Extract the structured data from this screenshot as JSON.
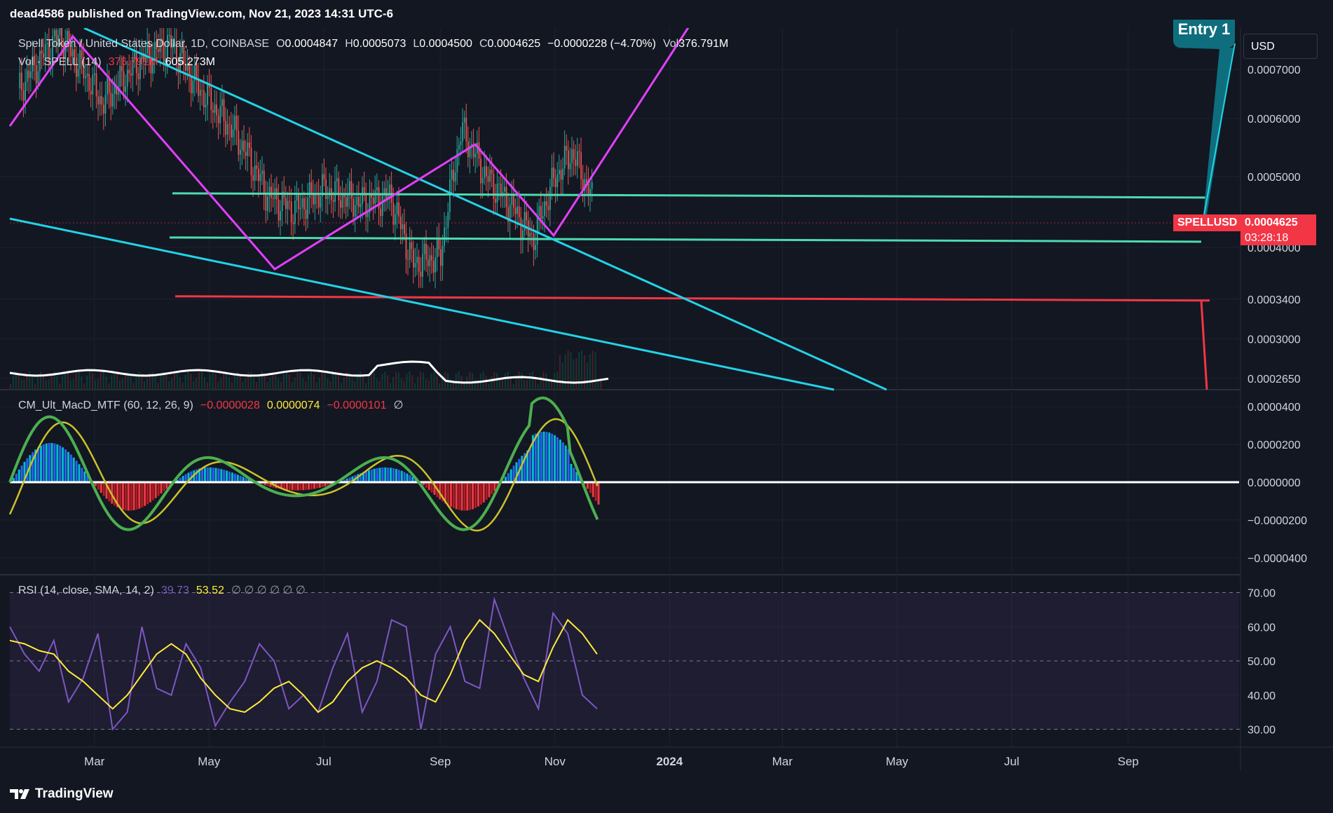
{
  "header": {
    "publish_text": "dead4586 published on TradingView.com, Nov 21, 2023 14:31 UTC-6"
  },
  "main_legend": {
    "symbol": "Spell Token / United States Dollar, 1D, COINBASE",
    "o_label": "O",
    "o_value": "0.0004847",
    "h_label": "H",
    "h_value": "0.0005073",
    "l_label": "L",
    "l_value": "0.0004500",
    "c_label": "C",
    "c_value": "0.0004625",
    "change": "−0.0000228 (−4.70%)",
    "vol_label": "Vol",
    "vol_value": "376.791M"
  },
  "vol_legend": {
    "name": "Vol · SPELL (14)",
    "value1": "376.791M",
    "value2": "605.273M"
  },
  "macd_legend": {
    "name": "CM_Ult_MacD_MTF (60, 12, 26, 9)",
    "v1": "−0.0000028",
    "v2": "0.0000074",
    "v3": "−0.0000101",
    "v4": "∅"
  },
  "rsi_legend": {
    "name": "RSI (14, close, SMA, 14, 2)",
    "v1": "39.73",
    "v2": "53.52",
    "extras": "∅ ∅ ∅ ∅ ∅ ∅"
  },
  "currency_button": "USD",
  "entry_label": "Entry 1",
  "price_tag": {
    "symbol": "SPELLUSD",
    "price": "0.0004625",
    "countdown": "03:28:18"
  },
  "footer": {
    "brand": "TradingView"
  },
  "colors": {
    "background": "#131722",
    "cyan": "#22d3e6",
    "magenta": "#e040fb",
    "red": "#f23645",
    "green_line": "#4ddbb0",
    "price_tag": "#f23645"
  },
  "chart_data": [
    {
      "type": "candlestick",
      "title": "Spell Token / United States Dollar, 1D, COINBASE",
      "y_axis_ticks": [
        "0.0007000",
        "0.0006000",
        "0.0005000",
        "0.0004000",
        "0.0003400",
        "0.0003000",
        "0.0002650"
      ],
      "y_tick_values": [
        0.0007,
        0.0006,
        0.0005,
        0.0004,
        0.00034,
        0.0003,
        0.000265
      ],
      "scale": "log",
      "x_axis_ticks": [
        "Mar",
        "May",
        "Jul",
        "Sep",
        "Nov",
        "2024",
        "Mar",
        "May",
        "Jul",
        "Sep"
      ],
      "series": [
        {
          "name": "SPELL approx close",
          "x": [
            "2023-01-20",
            "2023-02-10",
            "2023-03-05",
            "2023-03-25",
            "2023-04-10",
            "2023-04-25",
            "2023-05-15",
            "2023-06-01",
            "2023-06-15",
            "2023-07-01",
            "2023-07-20",
            "2023-08-05",
            "2023-08-17",
            "2023-09-01",
            "2023-09-12",
            "2023-09-25",
            "2023-10-10",
            "2023-10-20",
            "2023-11-01",
            "2023-11-10",
            "2023-11-21"
          ],
          "values": [
            0.00066,
            0.00078,
            0.00063,
            0.00072,
            0.00076,
            0.00066,
            0.00057,
            0.00047,
            0.00045,
            0.00048,
            0.00046,
            0.00047,
            0.00038,
            0.00039,
            0.00058,
            0.0005,
            0.00045,
            0.00041,
            0.0005,
            0.00054,
            0.0004625
          ]
        }
      ],
      "last_price": 0.0004625,
      "horizontal_levels": [
        0.00047,
        0.00041,
        0.00034
      ]
    },
    {
      "type": "histogram+line",
      "title": "CM_Ult_MacD_MTF (60, 12, 26, 9)",
      "y_axis_ticks": [
        "0.0000400",
        "0.0000200",
        "0.0000000",
        "−0.0000200",
        "−0.0000400"
      ],
      "y_tick_values": [
        4e-05,
        2e-05,
        0,
        -2e-05,
        -4e-05
      ]
    },
    {
      "type": "line",
      "title": "RSI (14, close, SMA, 14, 2)",
      "y_axis_ticks": [
        "70.00",
        "60.00",
        "50.00",
        "40.00",
        "30.00"
      ],
      "y_tick_values": [
        70,
        60,
        50,
        40,
        30
      ],
      "ylim": [
        26,
        74
      ],
      "series": [
        {
          "name": "RSI",
          "values": [
            60,
            52,
            47,
            56,
            38,
            45,
            58,
            30,
            35,
            60,
            42,
            40,
            55,
            48,
            31,
            38,
            44,
            55,
            50,
            36,
            40,
            35,
            48,
            58,
            35,
            44,
            62,
            60,
            30,
            52,
            60,
            44,
            42,
            68,
            56,
            45,
            36,
            64,
            58,
            40,
            36
          ]
        },
        {
          "name": "SMA",
          "values": [
            56,
            55,
            53,
            52,
            47,
            44,
            40,
            36,
            40,
            46,
            52,
            55,
            52,
            45,
            40,
            36,
            35,
            38,
            42,
            44,
            40,
            35,
            38,
            44,
            48,
            50,
            48,
            45,
            40,
            38,
            46,
            56,
            62,
            58,
            52,
            46,
            44,
            54,
            62,
            58,
            52
          ]
        }
      ]
    }
  ]
}
